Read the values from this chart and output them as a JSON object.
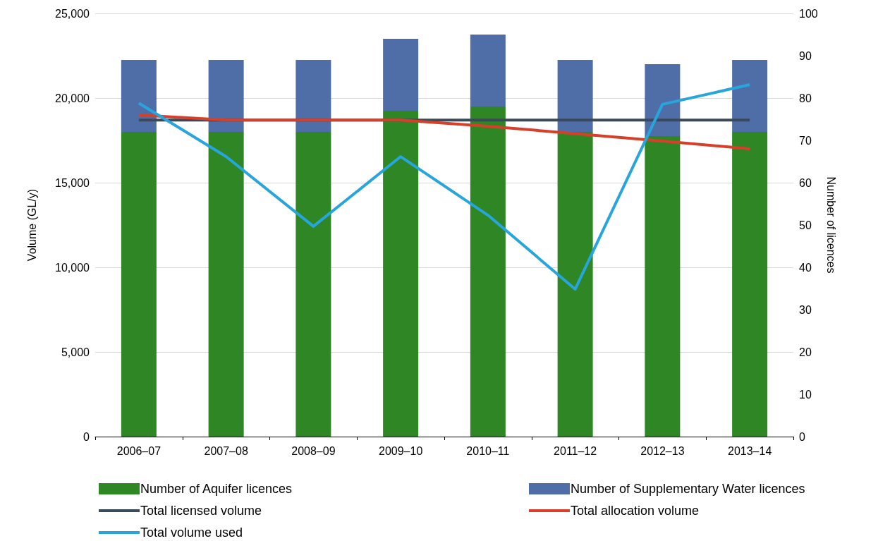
{
  "chart_data": {
    "type": "bar",
    "ylabel": "Volume (GL/y)",
    "y2label": "Number of licences",
    "categories": [
      "2006–07",
      "2007–08",
      "2008–09",
      "2009–10",
      "2010–11",
      "2011–12",
      "2012–13",
      "2013–14"
    ],
    "stacked": true,
    "grid": "y",
    "legend": "bottom",
    "marker": "none",
    "ylim": [
      0,
      25000
    ],
    "yticks": [
      {
        "value": 0,
        "label": "0"
      },
      {
        "value": 5000,
        "label": "5,000"
      },
      {
        "value": 10000,
        "label": "10,000"
      },
      {
        "value": 15000,
        "label": "15,000"
      },
      {
        "value": 20000,
        "label": "20,000"
      },
      {
        "value": 25000,
        "label": "25,000"
      }
    ],
    "y2lim": [
      0,
      100
    ],
    "y2ticks": [
      0,
      10,
      20,
      30,
      40,
      50,
      60,
      70,
      80,
      90,
      100
    ],
    "series": [
      {
        "name": "Number of Aquifer licences",
        "axis": "y2",
        "color": "#2e8724",
        "values": [
          72,
          72,
          72,
          77,
          78,
          72,
          71,
          72
        ]
      },
      {
        "name": "Number of Supplementary Water licences",
        "axis": "y2",
        "color": "#4f6ea7",
        "values": [
          17,
          17,
          17,
          17,
          17,
          17,
          17,
          17
        ]
      },
      {
        "name": "Total licensed volume",
        "type": "line",
        "color": "#3b4a5a",
        "values": [
          18700,
          18700,
          18700,
          18700,
          18700,
          18700,
          18700,
          18700
        ]
      },
      {
        "name": "Total allocation volume",
        "type": "line",
        "color": "#d6402a",
        "values": [
          19000,
          18700,
          18700,
          18700,
          18330,
          17900,
          17460,
          17000
        ]
      },
      {
        "name": "Total volume used",
        "type": "line",
        "color": "#27a5dc",
        "values": [
          19700,
          16540,
          12420,
          16540,
          13080,
          8710,
          19630,
          20790
        ]
      }
    ]
  }
}
